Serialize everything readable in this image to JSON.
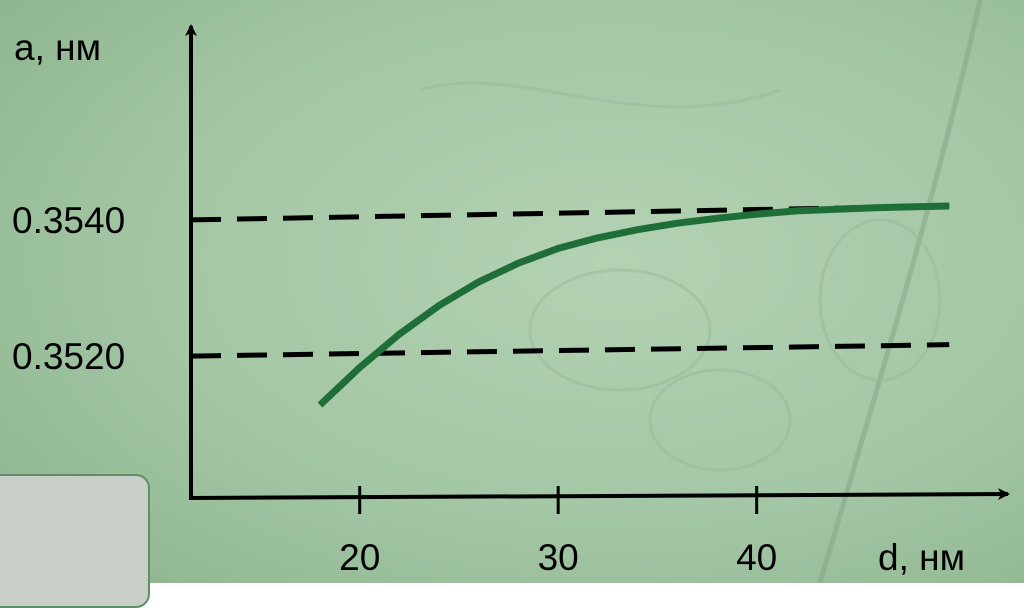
{
  "colors": {
    "background": "#a7c8a8",
    "curve": "#1f6e38",
    "axis": "#000000",
    "dashed": "#000000",
    "panel": "#c8cfc9"
  },
  "chart_data": {
    "type": "line",
    "xlabel": "d, нм",
    "ylabel": "a, нм",
    "xlim": [
      11.5,
      51
    ],
    "ylim": [
      0.35054,
      0.35645
    ],
    "x_ticks": [
      20,
      30,
      40
    ],
    "x_tick_labels": [
      "20",
      "30",
      "40"
    ],
    "y_tick_labels": [
      "0.3540",
      "0.3520"
    ],
    "reference_lines": [
      {
        "label": "0.3540",
        "style": "dashed",
        "x": [
          11.5,
          49.7
        ],
        "y": [
          0.35395,
          0.35412
        ]
      },
      {
        "label": "0.3520",
        "style": "dashed",
        "x": [
          11.5,
          49.7
        ],
        "y": [
          0.35228,
          0.35242
        ]
      }
    ],
    "series": [
      {
        "x": [
          18.0,
          20.0,
          22.0,
          24.0,
          26.0,
          28.0,
          30.0,
          32.0,
          34.0,
          36.0,
          38.0,
          40.0,
          42.0,
          44.0,
          46.0,
          48.0,
          49.7
        ],
        "y": [
          0.35168,
          0.35214,
          0.35255,
          0.3529,
          0.35319,
          0.35342,
          0.3536,
          0.35373,
          0.35383,
          0.35391,
          0.35397,
          0.35402,
          0.35406,
          0.35408,
          0.3541,
          0.35411,
          0.35412
        ]
      }
    ],
    "grid": false,
    "legend": "none"
  }
}
